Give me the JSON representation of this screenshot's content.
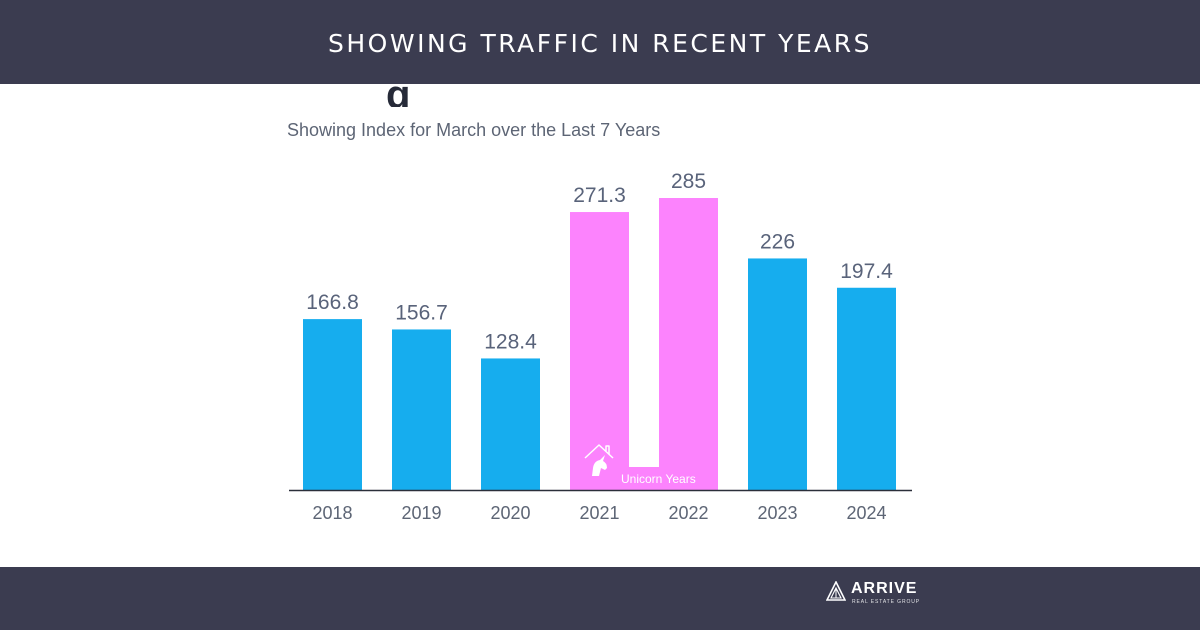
{
  "banner": {
    "title": "SHOWING TRAFFIC IN RECENT YEARS"
  },
  "heading_fragment": "g",
  "chart_data": {
    "type": "bar",
    "title": "",
    "subtitle": "Showing Index for March over the Last 7 Years",
    "xlabel": "",
    "ylabel": "",
    "categories": [
      "2018",
      "2019",
      "2020",
      "2021",
      "2022",
      "2023",
      "2024"
    ],
    "values": [
      166.8,
      156.7,
      128.4,
      271.3,
      285,
      226,
      197.4
    ],
    "value_labels": [
      "166.8",
      "156.7",
      "128.4",
      "271.3",
      "285",
      "226",
      "197.4"
    ],
    "highlight": [
      false,
      false,
      false,
      true,
      true,
      false,
      false
    ],
    "ylim": [
      0,
      285
    ],
    "grid": false,
    "colors": {
      "default": "#16adee",
      "highlight": "#fc83fd"
    },
    "annotation": {
      "text": "Unicorn Years",
      "icon": "unicorn-house-icon",
      "categories": [
        "2021",
        "2022"
      ]
    }
  },
  "footer": {
    "logo_text": "ARRIVE",
    "logo_subtext": "REAL ESTATE GROUP",
    "logo_icon": "arrive-triangle-icon"
  }
}
